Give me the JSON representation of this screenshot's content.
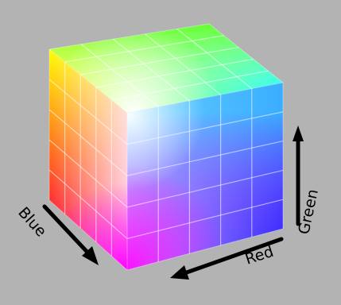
{
  "diagram": {
    "background_color": "#b3b3b3",
    "grid_divisions": 5,
    "axes": {
      "red": {
        "label": "Red"
      },
      "green": {
        "label": "Green"
      },
      "blue": {
        "label": "Blue"
      }
    }
  }
}
